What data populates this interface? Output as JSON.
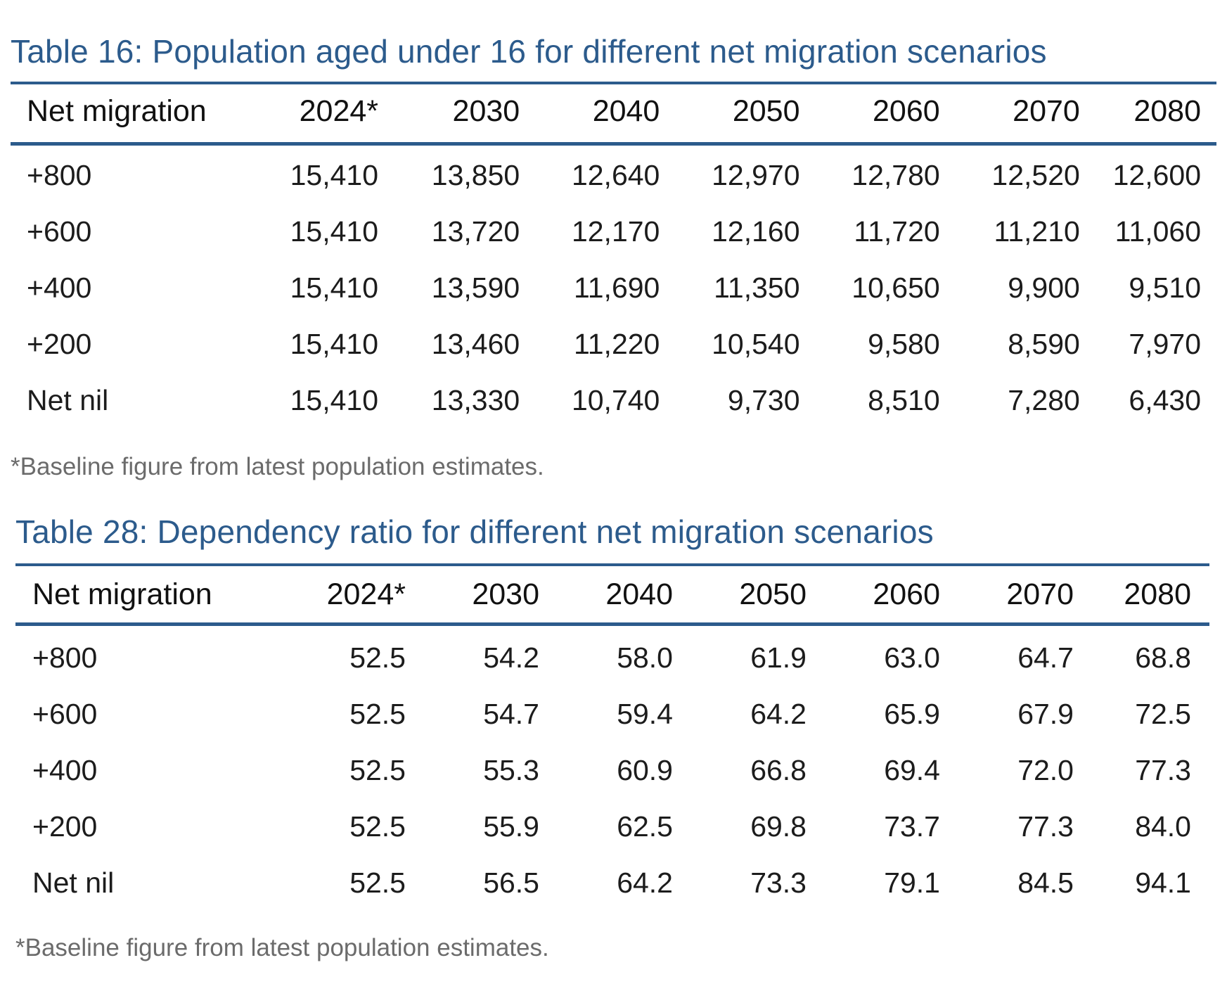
{
  "table16": {
    "title": "Table 16: Population aged under 16 for different net migration scenarios",
    "columns": [
      "Net migration",
      "2024*",
      "2030",
      "2040",
      "2050",
      "2060",
      "2070",
      "2080"
    ],
    "rows": [
      [
        "+800",
        "15,410",
        "13,850",
        "12,640",
        "12,970",
        "12,780",
        "12,520",
        "12,600"
      ],
      [
        "+600",
        "15,410",
        "13,720",
        "12,170",
        "12,160",
        "11,720",
        "11,210",
        "11,060"
      ],
      [
        "+400",
        "15,410",
        "13,590",
        "11,690",
        "11,350",
        "10,650",
        "9,900",
        "9,510"
      ],
      [
        "+200",
        "15,410",
        "13,460",
        "11,220",
        "10,540",
        "9,580",
        "8,590",
        "7,970"
      ],
      [
        "Net nil",
        "15,410",
        "13,330",
        "10,740",
        "9,730",
        "8,510",
        "7,280",
        "6,430"
      ]
    ],
    "note": "*Baseline figure from latest population estimates."
  },
  "table28": {
    "title": "Table 28: Dependency ratio for different net migration scenarios",
    "columns": [
      "Net migration",
      "2024*",
      "2030",
      "2040",
      "2050",
      "2060",
      "2070",
      "2080"
    ],
    "rows": [
      [
        "+800",
        "52.5",
        "54.2",
        "58.0",
        "61.9",
        "63.0",
        "64.7",
        "68.8"
      ],
      [
        "+600",
        "52.5",
        "54.7",
        "59.4",
        "64.2",
        "65.9",
        "67.9",
        "72.5"
      ],
      [
        "+400",
        "52.5",
        "55.3",
        "60.9",
        "66.8",
        "69.4",
        "72.0",
        "77.3"
      ],
      [
        "+200",
        "52.5",
        "55.9",
        "62.5",
        "69.8",
        "73.7",
        "77.3",
        "84.0"
      ],
      [
        "Net nil",
        "52.5",
        "56.5",
        "64.2",
        "73.3",
        "79.1",
        "84.5",
        "94.1"
      ]
    ],
    "note": "*Baseline figure from latest population estimates."
  },
  "colors": {
    "accent": "#2c5b8c",
    "note_text": "#6b6b6b",
    "body_text": "#1c1c1c"
  }
}
